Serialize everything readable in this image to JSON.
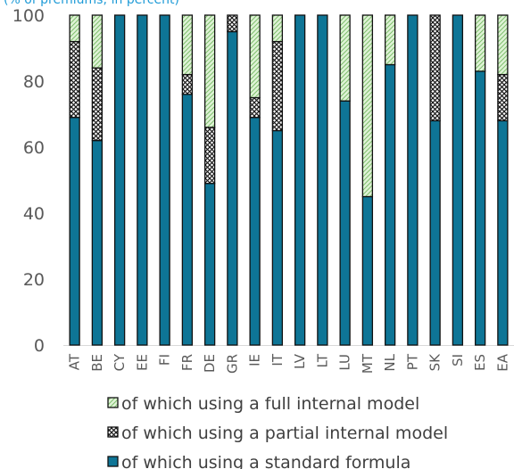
{
  "subtitle": "(% of premiums; in percent)",
  "chart_data": {
    "type": "bar",
    "stacked": true,
    "categories": [
      "AT",
      "BE",
      "CY",
      "EE",
      "FI",
      "FR",
      "DE",
      "GR",
      "IE",
      "IT",
      "LV",
      "LT",
      "LU",
      "MT",
      "NL",
      "PT",
      "SK",
      "SI",
      "ES",
      "EA"
    ],
    "ylim": [
      0,
      100
    ],
    "yticks": [
      0,
      20,
      40,
      60,
      80,
      100
    ],
    "grid": false,
    "legend_position": "bottom",
    "series": [
      {
        "name": "of which using a standard formula",
        "key": "standard",
        "fill": "solid",
        "color": "#0e7596",
        "values": [
          69,
          62,
          100,
          100,
          100,
          76,
          49,
          95,
          69,
          65,
          100,
          100,
          74,
          45,
          85,
          100,
          68,
          100,
          83,
          68
        ]
      },
      {
        "name": "of which using a partial internal model",
        "key": "partial",
        "fill": "crosshatch",
        "color": "#1a1a1a",
        "values": [
          23,
          22,
          0,
          0,
          0,
          6,
          17,
          5,
          6,
          27,
          0,
          0,
          0,
          0,
          0,
          0,
          32,
          0,
          0,
          14
        ]
      },
      {
        "name": "of which using a full internal model",
        "key": "full",
        "fill": "diagonal",
        "color": "#b5e6a9",
        "values": [
          8,
          16,
          0,
          0,
          0,
          18,
          34,
          0,
          25,
          8,
          0,
          0,
          26,
          55,
          15,
          0,
          0,
          0,
          17,
          18
        ]
      }
    ],
    "legend_order": [
      "full",
      "partial",
      "standard"
    ]
  }
}
